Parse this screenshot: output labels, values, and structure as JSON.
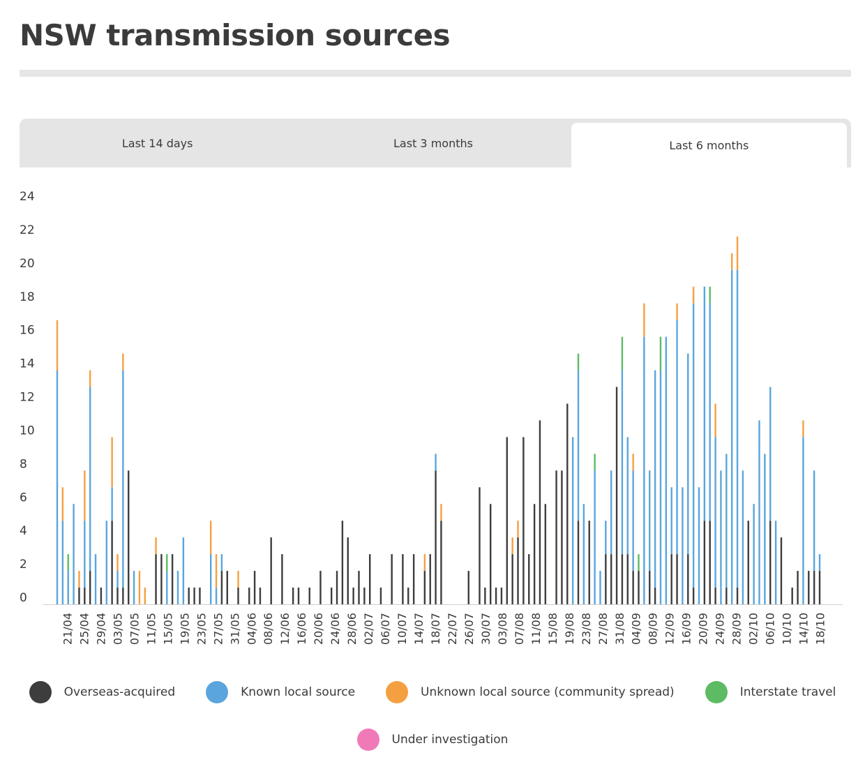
{
  "page": {
    "title": "NSW transmission sources"
  },
  "tabs": [
    {
      "label": "Last 14 days",
      "active": false
    },
    {
      "label": "Last 3 months",
      "active": false
    },
    {
      "label": "Last 6 months",
      "active": true
    }
  ],
  "colors": {
    "overseas": "#3d3d3d",
    "known_local": "#5aa5dd",
    "unknown_local": "#f5a040",
    "interstate": "#5dbb63",
    "under_investigation": "#f07ab8"
  },
  "chart_data": {
    "type": "bar",
    "stacked": true,
    "grid": false,
    "legend_position": "bottom",
    "ylim": [
      0,
      24
    ],
    "yticks": [
      0,
      2,
      4,
      6,
      8,
      10,
      12,
      14,
      16,
      18,
      20,
      22,
      24
    ],
    "xtick_labels": [
      "21/04",
      "25/04",
      "29/04",
      "03/05",
      "07/05",
      "11/05",
      "15/05",
      "19/05",
      "23/05",
      "27/05",
      "31/05",
      "04/06",
      "08/06",
      "12/06",
      "16/06",
      "20/06",
      "24/06",
      "28/06",
      "02/07",
      "06/07",
      "10/07",
      "14/07",
      "18/07",
      "22/07",
      "26/07",
      "30/07",
      "03/08",
      "07/08",
      "11/08",
      "15/08",
      "19/08",
      "23/08",
      "27/08",
      "31/08",
      "04/09",
      "08/09",
      "12/09",
      "16/09",
      "20/09",
      "24/09",
      "28/09",
      "02/10",
      "06/10",
      "10/10",
      "14/10",
      "18/10"
    ],
    "series": [
      {
        "name": "Overseas-acquired",
        "color": "#3d3d3d",
        "values": [
          0,
          0,
          0,
          1,
          1,
          2,
          0,
          1,
          0,
          5,
          1,
          8,
          1,
          0,
          0,
          0,
          3,
          3,
          0,
          0,
          0,
          1,
          1,
          0,
          0,
          0,
          0,
          0,
          0,
          0,
          0,
          3,
          0,
          0,
          2,
          0,
          0,
          0,
          0,
          2,
          0,
          1,
          0,
          0,
          0,
          2,
          0,
          1,
          0,
          0,
          2,
          0,
          1,
          1,
          0,
          0,
          1,
          0,
          0,
          0,
          1,
          0,
          0,
          1,
          0,
          1,
          2,
          0,
          0,
          0,
          0,
          0,
          0,
          0,
          0,
          0,
          1,
          0,
          0,
          0,
          0,
          0,
          1,
          0,
          0,
          0,
          0,
          0,
          2,
          0,
          1,
          0,
          1,
          0,
          0,
          3,
          0,
          0,
          2,
          0,
          0,
          2,
          0,
          3,
          1,
          1,
          0,
          2,
          1,
          0,
          2,
          4,
          0,
          0,
          1,
          0,
          2,
          1,
          0,
          1,
          3,
          0,
          0,
          1,
          0,
          0,
          1,
          0,
          0,
          1,
          0,
          0,
          2,
          0,
          0,
          0,
          8,
          5,
          0,
          0,
          0,
          2,
          1,
          1,
          0,
          1,
          0,
          6,
          1,
          0,
          1,
          0,
          0,
          0,
          0,
          4,
          3,
          10,
          4,
          0,
          0,
          0,
          3,
          10,
          0,
          3,
          6,
          0,
          0,
          6,
          0,
          8,
          0,
          8,
          12,
          10,
          0,
          5,
          12,
          0,
          0,
          0,
          2,
          0,
          5,
          0,
          0,
          3,
          3,
          2,
          0,
          5,
          5,
          0,
          0,
          5,
          5,
          0,
          0,
          0,
          3,
          0,
          0,
          0,
          0,
          0,
          0,
          3,
          3,
          0,
          0,
          3,
          0,
          1,
          0,
          3,
          0,
          0,
          1,
          1,
          1,
          0,
          0,
          5,
          0,
          0,
          0,
          3,
          0,
          0,
          0,
          0,
          1,
          0,
          0,
          0,
          0,
          1,
          2,
          0,
          0,
          3,
          0,
          0,
          0,
          0,
          2,
          2,
          2,
          0,
          0,
          0,
          0,
          1,
          0,
          1,
          1,
          1,
          2,
          1,
          0,
          0,
          2,
          2,
          0,
          1,
          1,
          2,
          0,
          2,
          4,
          1,
          2,
          0,
          0,
          4,
          4,
          0,
          4,
          4,
          0,
          3,
          0,
          3,
          0,
          0,
          4,
          0,
          0,
          0,
          2,
          1,
          1,
          0,
          6,
          1,
          0,
          0,
          0,
          0,
          0,
          0,
          0,
          0,
          2,
          0,
          0,
          2,
          0,
          3,
          0,
          0,
          2,
          2,
          0,
          5,
          0,
          3,
          0,
          0,
          4,
          4,
          0,
          4,
          5,
          2,
          0,
          4,
          0,
          4,
          0,
          0,
          5,
          0,
          2,
          0,
          2,
          0,
          4
        ]
      },
      {
        "name": "Known local source",
        "color": "#5aa5dd",
        "values": [
          0
        ]
      },
      {
        "name": "Unknown local source (community spread)",
        "color": "#f5a040",
        "values": [
          0
        ]
      },
      {
        "name": "Interstate travel",
        "color": "#5dbb63",
        "values": [
          0
        ]
      },
      {
        "name": "Under investigation",
        "color": "#f07ab8",
        "values": [
          0
        ]
      }
    ],
    "daily": [
      [
        0,
        14,
        3,
        0
      ],
      [
        0,
        5,
        2,
        0
      ],
      [
        0,
        2,
        0,
        1
      ],
      [
        0,
        6,
        0,
        0
      ],
      [
        1,
        0,
        1,
        0
      ],
      [
        1,
        4,
        3,
        0
      ],
      [
        2,
        11,
        1,
        0
      ],
      [
        0,
        3,
        0,
        0
      ],
      [
        1,
        0,
        0,
        0
      ],
      [
        0,
        5,
        0,
        0
      ],
      [
        5,
        2,
        3,
        0
      ],
      [
        1,
        1,
        1,
        0
      ],
      [
        1,
        13,
        1,
        0
      ],
      [
        8,
        0,
        0,
        0
      ],
      [
        0,
        2,
        0,
        0
      ],
      [
        0,
        0,
        2,
        0
      ],
      [
        0,
        0,
        1,
        0
      ],
      [
        0,
        0,
        0,
        0
      ],
      [
        3,
        0,
        1,
        0
      ],
      [
        3,
        0,
        0,
        0
      ],
      [
        0,
        2,
        0,
        1
      ],
      [
        3,
        0,
        0,
        0
      ],
      [
        0,
        2,
        0,
        0
      ],
      [
        0,
        4,
        0,
        0
      ],
      [
        1,
        0,
        0,
        0
      ],
      [
        1,
        0,
        0,
        0
      ],
      [
        1,
        0,
        0,
        0
      ],
      [
        0,
        0,
        0,
        0
      ],
      [
        0,
        3,
        2,
        0
      ],
      [
        0,
        1,
        2,
        0
      ],
      [
        2,
        1,
        0,
        0
      ],
      [
        2,
        0,
        0,
        0
      ],
      [
        0,
        0,
        0,
        0
      ],
      [
        1,
        0,
        1,
        0
      ],
      [
        0,
        0,
        0,
        0
      ],
      [
        1,
        0,
        0,
        0
      ],
      [
        2,
        0,
        0,
        0
      ],
      [
        1,
        0,
        0,
        0
      ],
      [
        0,
        0,
        0,
        0
      ],
      [
        4,
        0,
        0,
        0
      ],
      [
        0,
        0,
        0,
        0
      ],
      [
        3,
        0,
        0,
        0
      ],
      [
        0,
        0,
        0,
        0
      ],
      [
        1,
        0,
        0,
        0
      ],
      [
        1,
        0,
        0,
        0
      ],
      [
        0,
        0,
        0,
        0
      ],
      [
        1,
        0,
        0,
        0
      ],
      [
        0,
        0,
        0,
        0
      ],
      [
        2,
        0,
        0,
        0
      ],
      [
        0,
        0,
        0,
        0
      ],
      [
        1,
        0,
        0,
        0
      ],
      [
        2,
        0,
        0,
        0
      ],
      [
        5,
        0,
        0,
        0
      ],
      [
        4,
        0,
        0,
        0
      ],
      [
        1,
        0,
        0,
        0
      ],
      [
        2,
        0,
        0,
        0
      ],
      [
        1,
        0,
        0,
        0
      ],
      [
        3,
        0,
        0,
        0
      ],
      [
        0,
        0,
        0,
        0
      ],
      [
        1,
        0,
        0,
        0
      ],
      [
        0,
        0,
        0,
        0
      ],
      [
        3,
        0,
        0,
        0
      ],
      [
        0,
        0,
        0,
        0
      ],
      [
        3,
        0,
        0,
        0
      ],
      [
        1,
        0,
        0,
        0
      ],
      [
        3,
        0,
        0,
        0
      ],
      [
        0,
        0,
        0,
        0
      ],
      [
        2,
        0,
        1,
        0
      ],
      [
        3,
        0,
        0,
        0
      ],
      [
        8,
        1,
        0,
        0
      ],
      [
        5,
        0,
        1,
        0
      ],
      [
        0,
        0,
        0,
        0
      ],
      [
        0,
        0,
        0,
        0
      ],
      [
        0,
        0,
        0,
        0
      ],
      [
        0,
        0,
        0,
        0
      ],
      [
        2,
        0,
        0,
        0
      ],
      [
        0,
        0,
        0,
        0
      ],
      [
        7,
        0,
        0,
        0
      ],
      [
        1,
        0,
        0,
        0
      ],
      [
        6,
        0,
        0,
        0
      ],
      [
        1,
        0,
        0,
        0
      ],
      [
        1,
        0,
        0,
        0
      ],
      [
        10,
        0,
        0,
        0
      ],
      [
        3,
        0,
        1,
        0
      ],
      [
        4,
        0,
        1,
        0
      ],
      [
        10,
        0,
        0,
        0
      ],
      [
        3,
        0,
        0,
        0
      ],
      [
        6,
        0,
        0,
        0
      ],
      [
        11,
        0,
        0,
        0
      ],
      [
        6,
        0,
        0,
        0
      ],
      [
        0,
        0,
        0,
        0
      ],
      [
        8,
        0,
        0,
        0
      ],
      [
        8,
        0,
        0,
        0
      ],
      [
        12,
        0,
        0,
        0
      ],
      [
        0,
        10,
        0,
        0
      ],
      [
        5,
        9,
        0,
        1
      ],
      [
        0,
        6,
        0,
        0
      ],
      [
        5,
        0,
        0,
        0
      ],
      [
        0,
        8,
        0,
        1
      ],
      [
        0,
        2,
        0,
        0
      ],
      [
        3,
        2,
        0,
        0
      ],
      [
        3,
        5,
        0,
        0
      ],
      [
        13,
        0,
        0,
        0
      ],
      [
        3,
        11,
        0,
        2
      ],
      [
        3,
        7,
        0,
        0
      ],
      [
        2,
        6,
        1,
        0
      ],
      [
        2,
        0,
        0,
        1
      ],
      [
        0,
        16,
        2,
        0
      ],
      [
        2,
        6,
        0,
        0
      ],
      [
        1,
        13,
        0,
        0
      ],
      [
        0,
        14,
        0,
        2
      ],
      [
        0,
        16,
        0,
        0
      ],
      [
        3,
        4,
        0,
        0
      ],
      [
        3,
        14,
        1,
        0
      ],
      [
        0,
        7,
        0,
        0
      ],
      [
        3,
        12,
        0,
        0
      ],
      [
        1,
        17,
        1,
        0
      ],
      [
        0,
        7,
        0,
        0
      ],
      [
        5,
        14,
        0,
        0
      ],
      [
        5,
        13,
        0,
        1
      ],
      [
        1,
        9,
        2,
        0
      ],
      [
        0,
        8,
        0,
        0
      ],
      [
        1,
        8,
        0,
        0
      ],
      [
        0,
        20,
        1,
        0
      ],
      [
        1,
        19,
        2,
        0
      ],
      [
        0,
        8,
        0,
        0
      ],
      [
        5,
        0,
        0,
        0
      ],
      [
        0,
        6,
        0,
        0
      ],
      [
        0,
        11,
        0,
        0
      ],
      [
        0,
        9,
        0,
        0
      ],
      [
        5,
        8,
        0,
        0
      ],
      [
        0,
        5,
        0,
        0
      ],
      [
        4,
        0,
        0,
        0
      ],
      [
        0,
        0,
        0,
        0
      ],
      [
        1,
        0,
        0,
        0
      ],
      [
        2,
        0,
        0,
        0
      ],
      [
        0,
        10,
        1,
        0
      ],
      [
        2,
        0,
        0,
        0
      ],
      [
        2,
        6,
        0,
        0
      ],
      [
        2,
        1,
        0,
        0
      ]
    ]
  },
  "legend": [
    {
      "label": "Overseas-acquired",
      "color": "#3d3d3d"
    },
    {
      "label": "Known local source",
      "color": "#5aa5dd"
    },
    {
      "label": "Unknown local source (community spread)",
      "color": "#f5a040"
    },
    {
      "label": "Interstate travel",
      "color": "#5dbb63"
    },
    {
      "label": "Under investigation",
      "color": "#f07ab8"
    }
  ]
}
